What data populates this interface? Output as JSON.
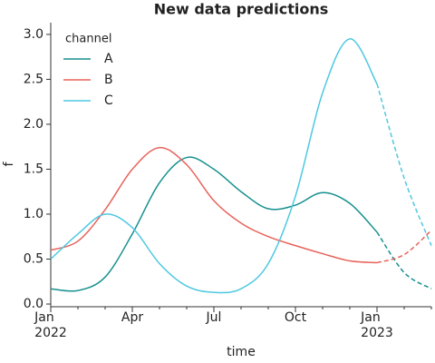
{
  "chart_data": {
    "type": "line",
    "title": "New data predictions",
    "x_label": "time",
    "y_label": "f",
    "x": [
      "2022-01",
      "2022-02",
      "2022-03",
      "2022-04",
      "2022-05",
      "2022-06",
      "2022-07",
      "2022-08",
      "2022-09",
      "2022-10",
      "2022-11",
      "2022-12",
      "2023-01",
      "2023-02",
      "2023-03"
    ],
    "dashed_from": "2023-01",
    "series": [
      {
        "name": "A",
        "color": "#16908f",
        "values": [
          0.17,
          0.15,
          0.3,
          0.78,
          1.35,
          1.63,
          1.5,
          1.25,
          1.06,
          1.1,
          1.24,
          1.12,
          0.8,
          0.35,
          0.17
        ]
      },
      {
        "name": "B",
        "color": "#e8625a",
        "values": [
          0.6,
          0.7,
          1.05,
          1.5,
          1.74,
          1.55,
          1.15,
          0.9,
          0.75,
          0.65,
          0.56,
          0.48,
          0.46,
          0.55,
          0.82
        ]
      },
      {
        "name": "C",
        "color": "#4ec8e0",
        "values": [
          0.5,
          0.78,
          1.0,
          0.85,
          0.45,
          0.2,
          0.13,
          0.17,
          0.45,
          1.2,
          2.35,
          2.95,
          2.45,
          1.4,
          0.65
        ]
      }
    ],
    "legend_title": "channel",
    "legend": "upper left",
    "xlim": [
      "2022-01",
      "2023-03"
    ],
    "xticks": [
      {
        "value": "2022-01",
        "label": "Jan\n2022"
      },
      {
        "value": "2022-04",
        "label": "Apr"
      },
      {
        "value": "2022-07",
        "label": "Jul"
      },
      {
        "value": "2022-10",
        "label": "Oct"
      },
      {
        "value": "2023-01",
        "label": "Jan\n2023"
      }
    ],
    "ylim": [
      -0.03,
      3.13
    ],
    "yticks": [
      {
        "value": 0,
        "label": "0.0"
      },
      {
        "value": 0.5,
        "label": "0.5"
      },
      {
        "value": 1,
        "label": "1.0"
      },
      {
        "value": 1.5,
        "label": "1.5"
      },
      {
        "value": 2,
        "label": "2.0"
      },
      {
        "value": 2.5,
        "label": "2.5"
      },
      {
        "value": 3,
        "label": "3.0"
      }
    ]
  }
}
